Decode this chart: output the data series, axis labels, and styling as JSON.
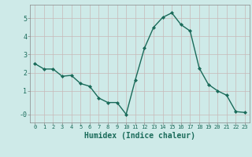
{
  "x": [
    0,
    1,
    2,
    3,
    4,
    5,
    6,
    7,
    8,
    9,
    10,
    11,
    12,
    13,
    14,
    15,
    16,
    17,
    18,
    19,
    20,
    21,
    22,
    23
  ],
  "y": [
    2.5,
    2.2,
    2.2,
    1.8,
    1.85,
    1.4,
    1.25,
    0.6,
    0.35,
    0.35,
    -0.3,
    1.6,
    3.35,
    4.5,
    5.05,
    5.3,
    4.65,
    4.3,
    2.25,
    1.35,
    1.0,
    0.75,
    -0.15,
    -0.2
  ],
  "line_color": "#1a6b5a",
  "marker": "D",
  "marker_size": 2.0,
  "linewidth": 1.0,
  "xlabel": "Humidex (Indice chaleur)",
  "xlabel_fontsize": 7,
  "xlabel_color": "#1a6b5a",
  "ylabel_ticks": [
    "-0",
    "1",
    "2",
    "3",
    "4",
    "5"
  ],
  "yticks": [
    -0.3,
    1,
    2,
    3,
    4,
    5
  ],
  "ylim": [
    -0.75,
    5.75
  ],
  "xlim": [
    -0.5,
    23.5
  ],
  "xtick_labels": [
    "0",
    "1",
    "2",
    "3",
    "4",
    "5",
    "6",
    "7",
    "8",
    "9",
    "10",
    "11",
    "12",
    "13",
    "14",
    "15",
    "16",
    "17",
    "18",
    "19",
    "20",
    "21",
    "22",
    "23"
  ],
  "bg_color": "#ceeae8",
  "grid_color": "#c8b8b8",
  "tick_color": "#1a6b5a"
}
